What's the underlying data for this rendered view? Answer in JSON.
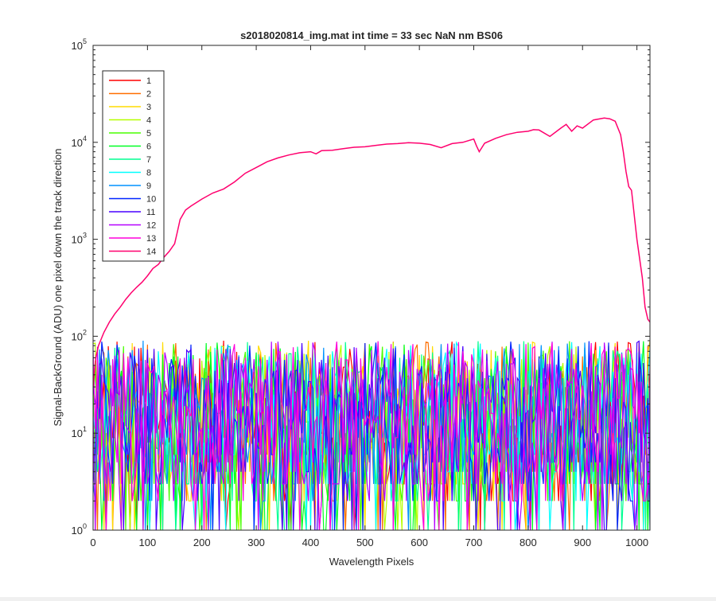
{
  "chart_data": {
    "type": "line",
    "title": "s2018020814_img.mat int time = 33 sec  NaN nm BS06",
    "xlabel": "Wavelength Pixels",
    "ylabel": "Signal-BackGround (ADU) one pixel down the track direction",
    "xlim": [
      0,
      1024
    ],
    "ylim": [
      1,
      100000
    ],
    "yscale": "log",
    "grid": false,
    "legend_position": "top-left",
    "x_ticks": [
      0,
      100,
      200,
      300,
      400,
      500,
      600,
      700,
      800,
      900,
      1000
    ],
    "x_tick_labels": [
      "0",
      "100",
      "200",
      "300",
      "400",
      "500",
      "600",
      "700",
      "800",
      "900",
      "1000"
    ],
    "y_ticks": [
      1,
      10,
      100,
      1000,
      10000,
      100000
    ],
    "y_tick_labels": [
      {
        "base": "10",
        "exp": "0"
      },
      {
        "base": "10",
        "exp": "1"
      },
      {
        "base": "10",
        "exp": "2"
      },
      {
        "base": "10",
        "exp": "3"
      },
      {
        "base": "10",
        "exp": "4"
      },
      {
        "base": "10",
        "exp": "5"
      }
    ],
    "noise_floor": {
      "typical_range": [
        2,
        90
      ],
      "minimum": 1,
      "applies_to_series": [
        "1",
        "2",
        "3",
        "4",
        "5",
        "6",
        "7",
        "8",
        "9",
        "10",
        "11",
        "12",
        "13"
      ]
    },
    "series": [
      {
        "name": "1",
        "color": "#ff0000"
      },
      {
        "name": "2",
        "color": "#ff6e00"
      },
      {
        "name": "3",
        "color": "#ffdc00"
      },
      {
        "name": "4",
        "color": "#b6ff00"
      },
      {
        "name": "5",
        "color": "#48ff00"
      },
      {
        "name": "6",
        "color": "#00ff24"
      },
      {
        "name": "7",
        "color": "#00ff92"
      },
      {
        "name": "8",
        "color": "#00ffff"
      },
      {
        "name": "9",
        "color": "#0092ff"
      },
      {
        "name": "10",
        "color": "#0024ff"
      },
      {
        "name": "11",
        "color": "#4800ff"
      },
      {
        "name": "12",
        "color": "#b600ff"
      },
      {
        "name": "13",
        "color": "#ff00dc"
      },
      {
        "name": "14",
        "color": "#ff006e",
        "x": [
          0,
          5,
          10,
          20,
          30,
          40,
          50,
          60,
          70,
          80,
          90,
          100,
          110,
          120,
          130,
          140,
          150,
          155,
          160,
          170,
          180,
          200,
          220,
          240,
          260,
          280,
          300,
          320,
          340,
          360,
          380,
          400,
          410,
          420,
          440,
          460,
          480,
          500,
          520,
          540,
          560,
          580,
          600,
          620,
          640,
          660,
          680,
          700,
          705,
          710,
          720,
          740,
          760,
          780,
          800,
          810,
          820,
          840,
          860,
          870,
          880,
          890,
          900,
          920,
          940,
          950,
          960,
          970,
          975,
          980,
          985,
          990,
          1000,
          1010,
          1015,
          1020,
          1024
        ],
        "y": [
          30,
          60,
          80,
          110,
          140,
          170,
          200,
          240,
          280,
          320,
          360,
          420,
          500,
          550,
          650,
          750,
          900,
          1200,
          1600,
          2000,
          2200,
          2600,
          3000,
          3300,
          3900,
          4800,
          5500,
          6300,
          6900,
          7400,
          7800,
          8000,
          7600,
          8200,
          8300,
          8600,
          8900,
          9000,
          9300,
          9600,
          9700,
          9900,
          9800,
          9500,
          8800,
          9700,
          10000,
          10800,
          9200,
          8000,
          9800,
          11000,
          12000,
          12700,
          13000,
          13500,
          13400,
          11500,
          14000,
          15300,
          13000,
          14800,
          14000,
          17000,
          17800,
          17500,
          16500,
          12000,
          8000,
          5000,
          3500,
          3200,
          1000,
          400,
          200,
          150,
          140
        ]
      }
    ]
  }
}
